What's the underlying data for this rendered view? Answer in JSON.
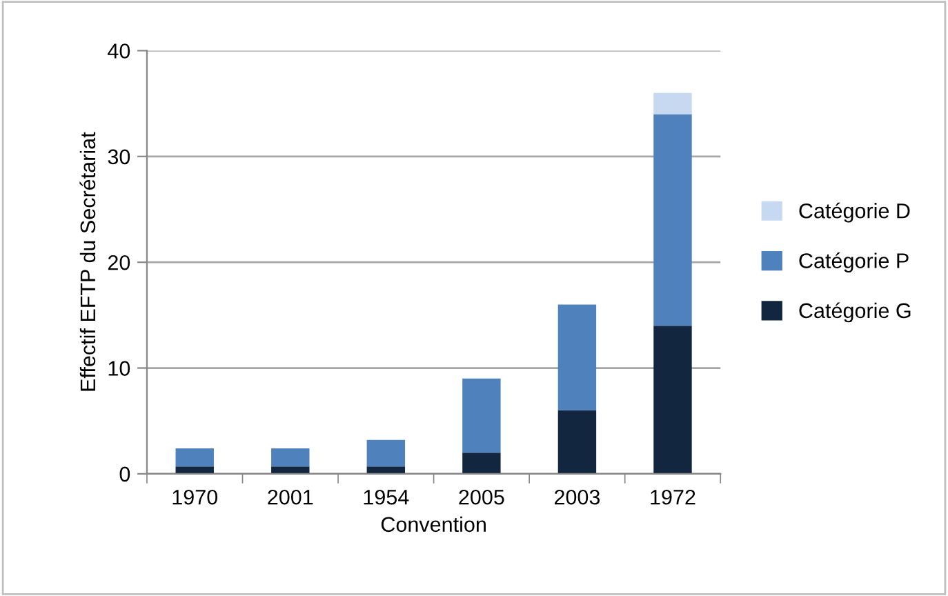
{
  "chart_data": {
    "type": "bar",
    "stacked": true,
    "xlabel": "Convention",
    "ylabel": "Effectif EFTP du Secrétariat",
    "categories": [
      "1970",
      "2001",
      "1954",
      "2005",
      "2003",
      "1972"
    ],
    "series": [
      {
        "name": "Catégorie G",
        "color": "#12263f",
        "values": [
          0.7,
          0.7,
          0.7,
          2,
          6,
          14
        ]
      },
      {
        "name": "Catégorie P",
        "color": "#4f81bd",
        "values": [
          1.7,
          1.7,
          2.5,
          7,
          10,
          20
        ]
      },
      {
        "name": "Catégorie D",
        "color": "#c6d9f1",
        "values": [
          0,
          0,
          0,
          0,
          0,
          2
        ]
      }
    ],
    "ylim": [
      0,
      40
    ],
    "yticks": [
      0,
      10,
      20,
      30,
      40
    ],
    "grid": "y",
    "legend": "right"
  }
}
